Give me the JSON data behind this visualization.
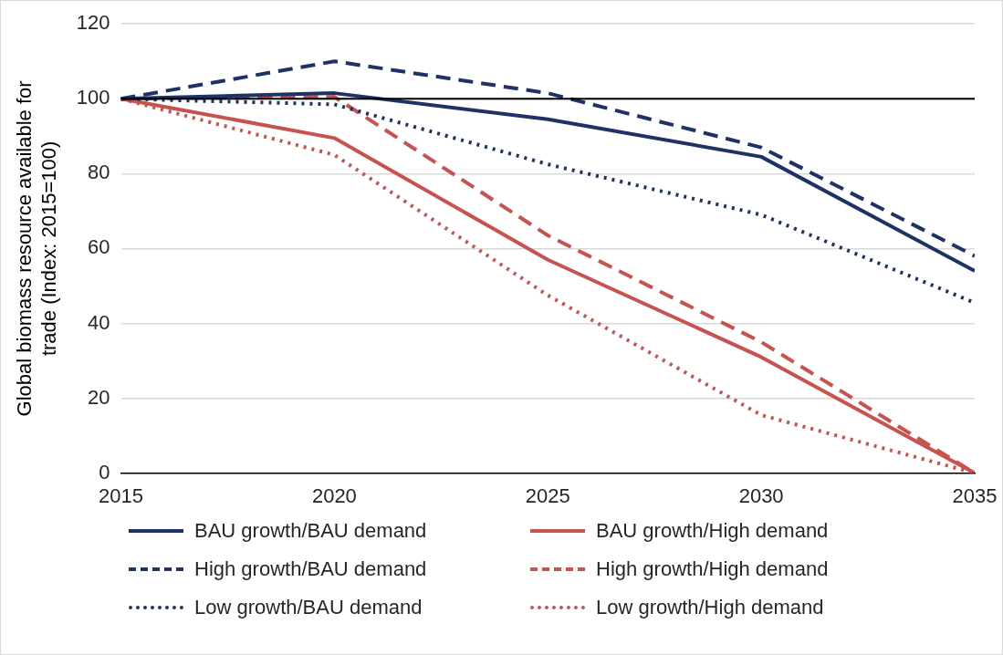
{
  "chart_data": {
    "type": "line",
    "ylabel": "Global biomass resource available for trade (Index: 2015=100)",
    "x": [
      2015,
      2020,
      2025,
      2030,
      2035
    ],
    "xlim": [
      2015,
      2035
    ],
    "xticks": [
      2015,
      2020,
      2025,
      2030,
      2035
    ],
    "ylim": [
      0,
      120
    ],
    "yticks": [
      0,
      20,
      40,
      60,
      80,
      100,
      120
    ],
    "grid": "y",
    "legend": "bottom",
    "marker": "none",
    "ref_lines": [
      {
        "axis": "y",
        "value": 100,
        "color": "#000000"
      }
    ],
    "series": [
      {
        "name": "BAU growth/BAU demand",
        "color": "#1f3266",
        "line_style": "solid",
        "values": [
          100,
          101.5,
          94.5,
          84.5,
          54
        ]
      },
      {
        "name": "High growth/BAU demand",
        "color": "#1f3266",
        "line_style": "dashed",
        "values": [
          100,
          110,
          101.5,
          87,
          58
        ]
      },
      {
        "name": "Low growth/BAU demand",
        "color": "#1f3266",
        "line_style": "dotted",
        "values": [
          100,
          98.5,
          82.5,
          69,
          45.5
        ]
      },
      {
        "name": "BAU growth/High demand",
        "color": "#c8524e",
        "line_style": "solid",
        "values": [
          100,
          89.5,
          57,
          31,
          0
        ]
      },
      {
        "name": "High growth/High demand",
        "color": "#c8524e",
        "line_style": "dashed",
        "values": [
          100,
          100.5,
          63.5,
          35,
          0
        ]
      },
      {
        "name": "Low growth/High demand",
        "color": "#c8524e",
        "line_style": "dotted",
        "values": [
          100,
          85,
          47.5,
          15.5,
          0
        ]
      }
    ]
  }
}
